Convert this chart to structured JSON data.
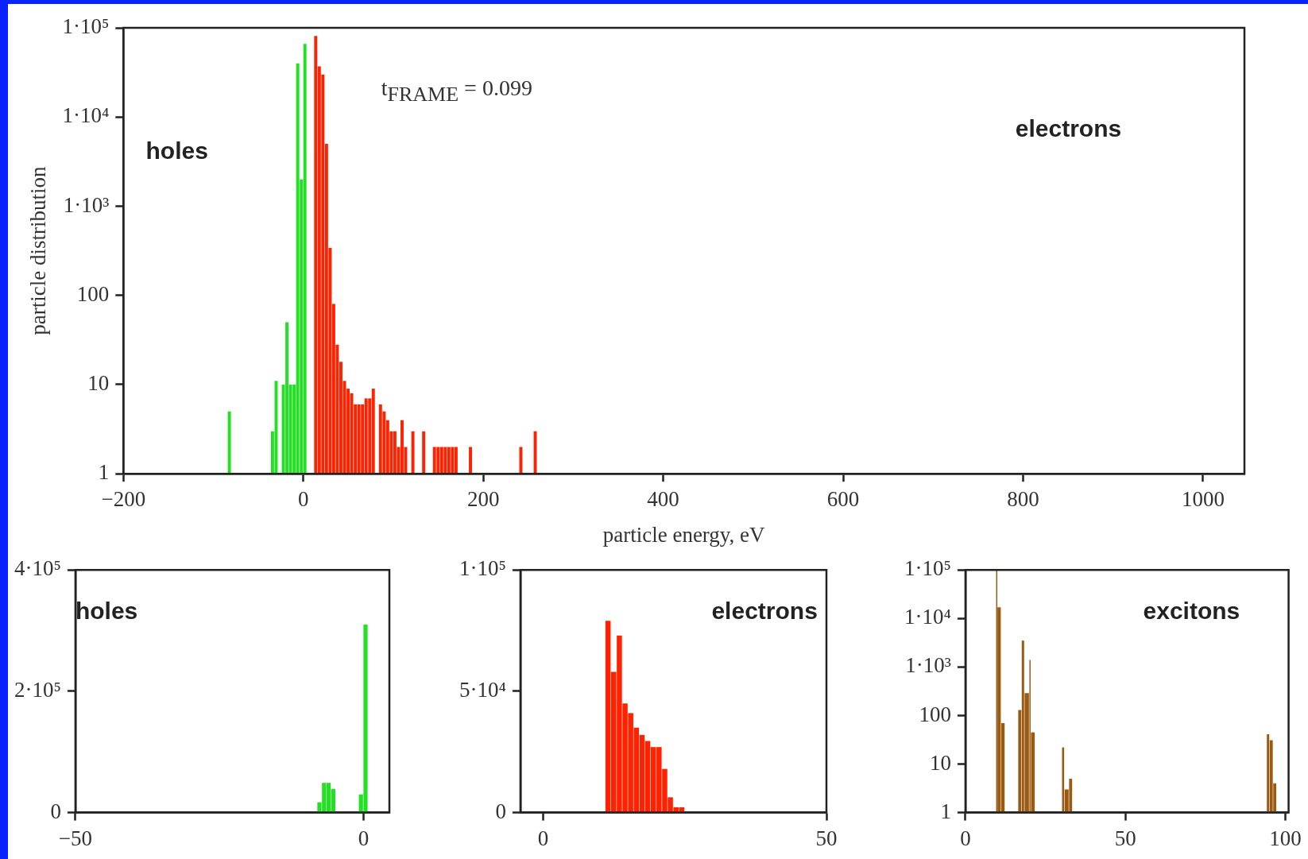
{
  "chart_data": [
    {
      "type": "histogram",
      "xlabel": "particle energy, eV",
      "ylabel": "particle distribution",
      "log": true,
      "xlim": [
        -200,
        1046
      ],
      "xticks": [
        {
          "value": -200,
          "label": "−200"
        },
        {
          "value": 0,
          "label": "0"
        },
        {
          "value": 200,
          "label": "200"
        },
        {
          "value": 400,
          "label": "400"
        },
        {
          "value": 600,
          "label": "600"
        },
        {
          "value": 800,
          "label": "800"
        },
        {
          "value": 1000,
          "label": "1000"
        }
      ],
      "ylim": [
        1,
        100000
      ],
      "yticks": [
        {
          "value": 1,
          "label": "1"
        },
        {
          "value": 10,
          "label": "10"
        },
        {
          "value": 100,
          "label": "100"
        },
        {
          "value": 1000,
          "label": "1·10³"
        },
        {
          "value": 10000,
          "label": "1·10⁴"
        },
        {
          "value": 100000,
          "label": "1·10⁵"
        }
      ],
      "annotations": [
        "t$_{FRAME}$ = 0.099",
        "holes",
        "electrons"
      ],
      "bins": [
        -84,
        -80,
        -76,
        -72,
        -68,
        -64,
        -60,
        -56,
        -52,
        -48,
        -44,
        -40,
        -36,
        -32,
        -28,
        -24,
        -20,
        -16,
        -12,
        -8,
        -4,
        0,
        4,
        8,
        12,
        16,
        20,
        24,
        28,
        32,
        36,
        40,
        44,
        48,
        52,
        56,
        60,
        64,
        68,
        72,
        76,
        80,
        84,
        88,
        92,
        96,
        100,
        104,
        108,
        112,
        116,
        120,
        124,
        128,
        132,
        136,
        140,
        144,
        148,
        152,
        156,
        160,
        164,
        168,
        172,
        176,
        180,
        184,
        188,
        192,
        196,
        200,
        204,
        208,
        212,
        216,
        220,
        224,
        228,
        232,
        236,
        240,
        244,
        248,
        252,
        256,
        260
      ],
      "series": [
        {
          "color": "#22e022",
          "values": [
            5,
            null,
            null,
            null,
            null,
            null,
            null,
            null,
            null,
            null,
            null,
            null,
            3,
            11,
            null,
            10,
            50,
            10,
            10,
            40000,
            2000,
            66000,
            null,
            null,
            null,
            null,
            null,
            null,
            null,
            null,
            null,
            null,
            null,
            null,
            null,
            null,
            null,
            null,
            null,
            null,
            null,
            null,
            null,
            null,
            null,
            null,
            null,
            null,
            null,
            null,
            null,
            null,
            null,
            null,
            null,
            null,
            null,
            null,
            null,
            null,
            null,
            null,
            null,
            null,
            null,
            null,
            null,
            null,
            null,
            null,
            null,
            null,
            null,
            null,
            null,
            null,
            null,
            null,
            null,
            null,
            null,
            null,
            null,
            null,
            null,
            null
          ]
        },
        {
          "color": "#ff2200",
          "values": [
            null,
            null,
            null,
            null,
            null,
            null,
            null,
            null,
            null,
            null,
            null,
            null,
            null,
            null,
            null,
            null,
            null,
            null,
            null,
            null,
            null,
            null,
            null,
            null,
            81000,
            37000,
            30000,
            5000,
            340,
            80,
            28,
            18,
            11,
            9,
            8,
            6,
            6,
            6,
            7,
            7,
            9,
            null,
            6,
            5,
            4,
            3,
            3,
            2,
            4,
            2,
            null,
            3,
            null,
            null,
            3,
            null,
            null,
            2,
            2,
            2,
            2,
            2,
            2,
            2,
            null,
            null,
            null,
            2,
            null,
            null,
            null,
            null,
            null,
            null,
            null,
            null,
            null,
            null,
            null,
            null,
            null,
            2,
            null,
            null,
            null,
            3
          ]
        }
      ]
    },
    {
      "type": "histogram",
      "xlim": [
        -50,
        4.5
      ],
      "xticks": [
        {
          "value": -50,
          "label": "−50"
        },
        {
          "value": 0,
          "label": "0"
        }
      ],
      "ylim": [
        0,
        400000
      ],
      "yticks": [
        {
          "value": 0,
          "label": "0"
        },
        {
          "value": 200000,
          "label": "2·10⁵"
        },
        {
          "value": 400000,
          "label": "4·10⁵"
        }
      ],
      "annotations": [
        "holes"
      ],
      "color": "#22e022",
      "bins": [
        -8,
        -7.2,
        -6.4,
        -5.6,
        -4.8,
        -0.8,
        0,
        0.8
      ],
      "values": [
        17000,
        49000,
        49000,
        39000,
        null,
        30000,
        310000
      ]
    },
    {
      "type": "histogram",
      "xlim": [
        -4,
        50
      ],
      "xticks": [
        {
          "value": 0,
          "label": "0"
        },
        {
          "value": 50,
          "label": "50"
        }
      ],
      "ylim": [
        0,
        100000
      ],
      "yticks": [
        {
          "value": 0,
          "label": "0"
        },
        {
          "value": 50000,
          "label": "5·10⁴"
        },
        {
          "value": 100000,
          "label": "1·10⁵"
        }
      ],
      "annotations": [
        "electrons"
      ],
      "color": "#ff2200",
      "bins": [
        11,
        12,
        13,
        14,
        15,
        16,
        17,
        18,
        19,
        20,
        21,
        22,
        23,
        24,
        25
      ],
      "values": [
        79000,
        58000,
        73000,
        45000,
        41000,
        35000,
        32000,
        29500,
        27000,
        27000,
        18000,
        6300,
        2200,
        2200
      ]
    },
    {
      "type": "histogram",
      "log": true,
      "xlim": [
        0,
        101
      ],
      "xticks": [
        {
          "value": 0,
          "label": "0"
        },
        {
          "value": 50,
          "label": "50"
        },
        {
          "value": 100,
          "label": "100"
        }
      ],
      "ylim": [
        1,
        100000
      ],
      "yticks": [
        {
          "value": 1,
          "label": "1"
        },
        {
          "value": 10,
          "label": "10"
        },
        {
          "value": 100,
          "label": "100"
        },
        {
          "value": 1000,
          "label": "1·10³"
        },
        {
          "value": 10000,
          "label": "1·10⁴"
        },
        {
          "value": 100000,
          "label": "1·10⁵"
        }
      ],
      "annotations": [
        "excitons"
      ],
      "color": "#9a5a12",
      "bins": [
        9.6,
        10,
        11.2,
        12.4,
        16.5,
        17.6,
        18.5,
        20,
        20.5,
        21.8,
        30.2,
        31,
        32.4,
        33.5,
        94.2,
        95.1,
        96.2,
        97.3
      ],
      "values": [
        100000,
        17000,
        70,
        null,
        130,
        3500,
        290,
        1400,
        45,
        null,
        22,
        3,
        5,
        null,
        41,
        31,
        4
      ]
    }
  ]
}
